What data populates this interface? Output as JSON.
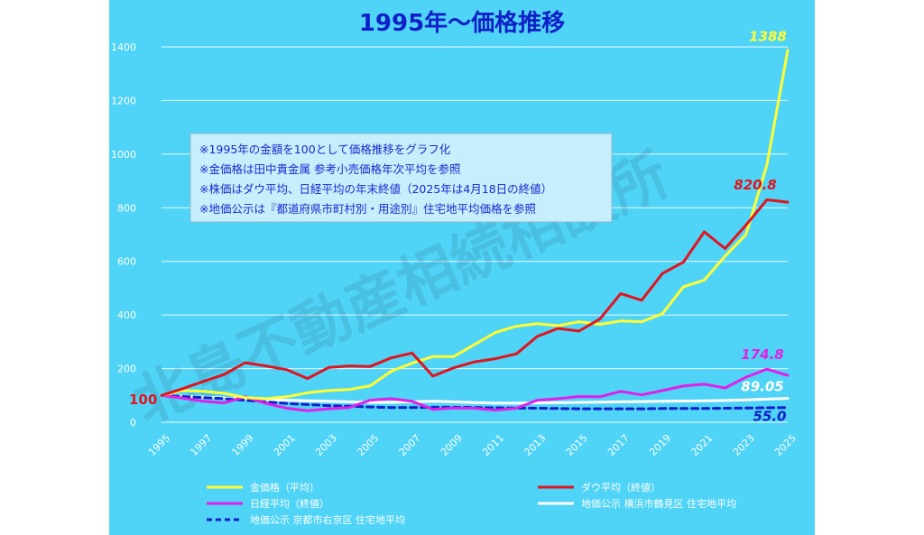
{
  "watermark": "北島不動産相続相談所",
  "notes": [
    "※1995年の金額を100として価格推移をグラフ化",
    "※金価格は田中貴金属 参考小売価格年次平均を参照",
    "※株価はダウ平均、日経平均の年末終値（2025年は4月18日の終値）",
    "※地価公示は『都道府県市町村別・用途別』住宅地平均価格を参照"
  ],
  "colors": {
    "background": "#4fd3f6",
    "gold": "#ffff33",
    "dow": "#e0141e",
    "nikkei": "#e020e8",
    "yokohama": "#ffffff",
    "kyoto": "#1020c8"
  },
  "chart_data": {
    "type": "line",
    "title": "1995年～価格推移",
    "xlabel": "",
    "ylabel": "",
    "x_range": [
      1995,
      2025
    ],
    "ylim": [
      0,
      1400
    ],
    "y_ticks": [
      "0",
      "200",
      "400",
      "600",
      "800",
      "1000",
      "1200",
      "1400"
    ],
    "x_ticks": [
      "1995",
      "1997",
      "1999",
      "2001",
      "2003",
      "2005",
      "2007",
      "2009",
      "2011",
      "2013",
      "2015",
      "2017",
      "2019",
      "2021",
      "2023",
      "2025"
    ],
    "grid": true,
    "legend_position": "bottom",
    "start_label": "100",
    "x": [
      1995,
      1996,
      1997,
      1998,
      1999,
      2000,
      2001,
      2002,
      2003,
      2004,
      2005,
      2006,
      2007,
      2008,
      2009,
      2010,
      2011,
      2012,
      2013,
      2014,
      2015,
      2016,
      2017,
      2018,
      2019,
      2020,
      2021,
      2022,
      2023,
      2024,
      2025
    ],
    "series": [
      {
        "name": "金価格（平均）",
        "color_key": "gold",
        "dashed": false,
        "end_label": "1388",
        "values": [
          100,
          118,
          115,
          108,
          92,
          88,
          95,
          110,
          118,
          122,
          136,
          190,
          220,
          245,
          245,
          290,
          335,
          358,
          368,
          360,
          375,
          365,
          378,
          375,
          405,
          505,
          530,
          620,
          700,
          960,
          1388
        ]
      },
      {
        "name": "ダウ平均（終値）",
        "color_key": "dow",
        "dashed": false,
        "end_label": "820.8",
        "values": [
          100,
          125,
          152,
          178,
          222,
          210,
          196,
          163,
          204,
          210,
          208,
          240,
          258,
          172,
          203,
          225,
          237,
          255,
          320,
          350,
          340,
          385,
          480,
          455,
          555,
          597,
          710,
          648,
          735,
          830,
          820.8
        ]
      },
      {
        "name": "日経平均（終値）",
        "color_key": "nikkei",
        "dashed": false,
        "end_label": "174.8",
        "values": [
          100,
          90,
          78,
          72,
          95,
          70,
          52,
          43,
          50,
          55,
          82,
          88,
          78,
          48,
          53,
          52,
          45,
          52,
          82,
          88,
          96,
          95,
          115,
          102,
          118,
          135,
          142,
          128,
          168,
          198,
          174.8
        ]
      },
      {
        "name": "地価公示 横浜市鶴見区 住宅地平均",
        "color_key": "yokohama",
        "dashed": false,
        "end_label": "89.05",
        "values": [
          100,
          97,
          94,
          90,
          86,
          84,
          82,
          80,
          78,
          76,
          74,
          74,
          76,
          78,
          76,
          73,
          71,
          71,
          72,
          73,
          74,
          75,
          76,
          77,
          78,
          79,
          80,
          81,
          83,
          86,
          89.05
        ]
      },
      {
        "name": "地価公示 京都市右京区 住宅地平均",
        "color_key": "kyoto",
        "dashed": true,
        "end_label": "55.0",
        "values": [
          100,
          96,
          92,
          88,
          82,
          76,
          70,
          66,
          62,
          60,
          57,
          55,
          55,
          56,
          56,
          55,
          54,
          53,
          52,
          51,
          50,
          50,
          50,
          50,
          51,
          51,
          51,
          52,
          53,
          54,
          55.0
        ]
      }
    ]
  }
}
